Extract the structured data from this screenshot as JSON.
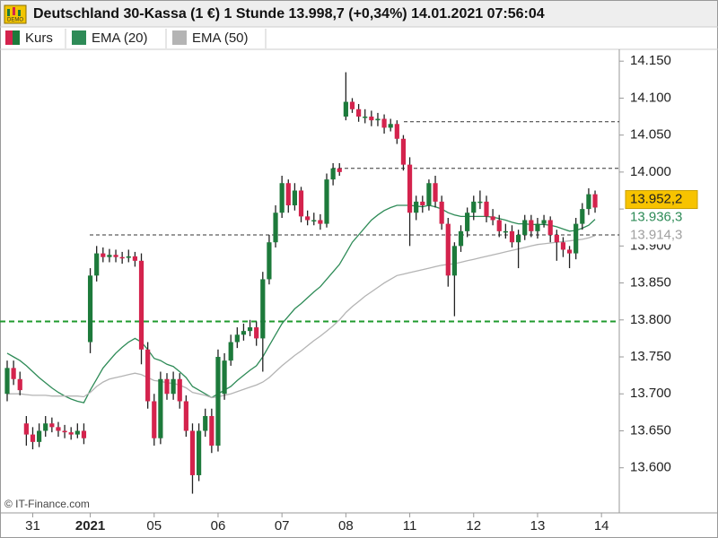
{
  "chart_data": {
    "type": "candlestick",
    "title": "Deutschland 30-Kassa (1 €) 1 Stunde 13.998,7 (+0,34%) 14.01.2021 07:56:04",
    "name": "Kurs",
    "up_color": "#1d7a3b",
    "down_color": "#d4234d",
    "source": "© IT-Finance.com",
    "categories": [
      null,
      null,
      null,
      null,
      "31",
      null,
      null,
      null,
      null,
      null,
      null,
      null,
      null,
      "2021",
      null,
      null,
      null,
      null,
      null,
      null,
      null,
      null,
      null,
      "05",
      null,
      null,
      null,
      null,
      null,
      null,
      null,
      null,
      null,
      "06",
      null,
      null,
      null,
      null,
      null,
      null,
      null,
      null,
      null,
      "07",
      null,
      null,
      null,
      null,
      null,
      null,
      null,
      null,
      null,
      "08",
      null,
      null,
      null,
      null,
      null,
      null,
      null,
      null,
      null,
      "11",
      null,
      null,
      null,
      null,
      null,
      null,
      null,
      null,
      null,
      "12",
      null,
      null,
      null,
      null,
      null,
      null,
      null,
      null,
      null,
      "13",
      null,
      null,
      null,
      null,
      null,
      null,
      null,
      null,
      null,
      "14"
    ],
    "open": [
      13700,
      13735,
      13720,
      13660,
      13645,
      13635,
      13650,
      13660,
      13655,
      13650,
      13648,
      13645,
      13650,
      13770,
      13860,
      13890,
      13885,
      13888,
      13885,
      13884,
      13886,
      13880,
      13760,
      13690,
      13640,
      13720,
      13700,
      13720,
      13690,
      13650,
      13590,
      13650,
      13670,
      13630,
      13700,
      13745,
      13770,
      13780,
      13785,
      13790,
      13775,
      13855,
      13905,
      13945,
      13985,
      13955,
      13975,
      13940,
      13935,
      13935,
      13930,
      13990,
      14005,
      14075,
      14095,
      14085,
      14075,
      14075,
      14070,
      14072,
      14060,
      14065,
      14045,
      14010,
      13945,
      13960,
      13955,
      13985,
      13960,
      13930,
      13860,
      13900,
      13920,
      13945,
      13960,
      13960,
      13940,
      13935,
      13920,
      13920,
      13905,
      13915,
      13935,
      13920,
      13930,
      13935,
      13915,
      13905,
      13895,
      13890,
      13930,
      13950,
      13970,
      null
    ],
    "high": [
      13745,
      13745,
      13730,
      13670,
      13655,
      13660,
      13670,
      13668,
      13662,
      13658,
      13655,
      13660,
      13660,
      13870,
      13900,
      13898,
      13896,
      13895,
      13892,
      13895,
      13892,
      13890,
      13770,
      13700,
      13730,
      13728,
      13730,
      13728,
      13698,
      13660,
      13660,
      13680,
      13680,
      13760,
      13755,
      13780,
      13790,
      13795,
      13800,
      13798,
      13865,
      13915,
      13955,
      13995,
      13990,
      13985,
      13980,
      13948,
      13945,
      13943,
      13998,
      14012,
      14012,
      14135,
      14100,
      14092,
      14085,
      14083,
      14080,
      14078,
      14072,
      14070,
      14050,
      14020,
      13968,
      13968,
      13990,
      13995,
      13968,
      13938,
      13905,
      13928,
      13952,
      13968,
      13975,
      13968,
      13950,
      13942,
      13930,
      13928,
      13922,
      13942,
      13942,
      13938,
      13942,
      13940,
      13922,
      13912,
      13900,
      13938,
      13958,
      13978,
      13975,
      null
    ],
    "low": [
      13690,
      13712,
      13698,
      13630,
      13625,
      13628,
      13642,
      13648,
      13642,
      13640,
      13638,
      13640,
      13632,
      13755,
      13852,
      13878,
      13878,
      13878,
      13876,
      13878,
      13872,
      13740,
      13680,
      13630,
      13632,
      13692,
      13692,
      13680,
      13642,
      13565,
      13582,
      13642,
      13620,
      13622,
      13692,
      13738,
      13762,
      13772,
      13778,
      13765,
      13730,
      13848,
      13898,
      13938,
      13945,
      13948,
      13932,
      13928,
      13928,
      13922,
      13925,
      13982,
      13995,
      14070,
      14080,
      14068,
      14066,
      14062,
      14062,
      14052,
      14055,
      14038,
      14002,
      13900,
      13935,
      13945,
      13948,
      13952,
      13922,
      13845,
      13805,
      13892,
      13912,
      13935,
      13950,
      13932,
      13928,
      13912,
      13910,
      13898,
      13870,
      13908,
      13912,
      13910,
      13925,
      13905,
      13880,
      13885,
      13870,
      13882,
      13922,
      13942,
      13945,
      null
    ],
    "close": [
      13735,
      13720,
      13705,
      13645,
      13635,
      13650,
      13660,
      13655,
      13650,
      13648,
      13645,
      13650,
      13640,
      13860,
      13890,
      13885,
      13888,
      13885,
      13884,
      13886,
      13880,
      13760,
      13690,
      13640,
      13720,
      13700,
      13720,
      13690,
      13650,
      13590,
      13650,
      13670,
      13630,
      13750,
      13745,
      13770,
      13780,
      13785,
      13790,
      13775,
      13855,
      13905,
      13945,
      13985,
      13955,
      13975,
      13940,
      13935,
      13935,
      13930,
      13990,
      14005,
      14000,
      14095,
      14085,
      14075,
      14075,
      14070,
      14072,
      14060,
      14065,
      14045,
      14010,
      13945,
      13960,
      13955,
      13985,
      13960,
      13930,
      13860,
      13900,
      13920,
      13945,
      13960,
      13960,
      13940,
      13935,
      13920,
      13920,
      13905,
      13915,
      13935,
      13920,
      13930,
      13935,
      13915,
      13905,
      13895,
      13890,
      13930,
      13950,
      13970,
      13952,
      null
    ],
    "series": [
      {
        "name": "EMA (20)",
        "color": "#2e8b57",
        "values": [
          13755,
          13750,
          13745,
          13738,
          13730,
          13722,
          13715,
          13708,
          13702,
          13697,
          13693,
          13690,
          13688,
          13705,
          13720,
          13735,
          13745,
          13755,
          13763,
          13770,
          13775,
          13770,
          13760,
          13748,
          13745,
          13740,
          13737,
          13730,
          13722,
          13710,
          13705,
          13700,
          13695,
          13700,
          13705,
          13710,
          13718,
          13725,
          13732,
          13738,
          13750,
          13765,
          13780,
          13795,
          13805,
          13815,
          13822,
          13830,
          13838,
          13845,
          13855,
          13865,
          13875,
          13890,
          13905,
          13915,
          13925,
          13935,
          13942,
          13948,
          13952,
          13955,
          13955,
          13955,
          13954,
          13953,
          13955,
          13953,
          13950,
          13945,
          13942,
          13940,
          13940,
          13940,
          13940,
          13940,
          13939,
          13937,
          13935,
          13932,
          13930,
          13930,
          13929,
          13929,
          13929,
          13928,
          13926,
          13923,
          13920,
          13921,
          13924,
          13928,
          13936,
          null
        ]
      },
      {
        "name": "EMA (50)",
        "color": "#b4b4b4",
        "values": [
          13700,
          13700,
          13700,
          13699,
          13698,
          13698,
          13698,
          13697,
          13697,
          13697,
          13697,
          13697,
          13696,
          13702,
          13710,
          13716,
          13720,
          13722,
          13724,
          13726,
          13728,
          13726,
          13722,
          13718,
          13717,
          13715,
          13714,
          13712,
          13708,
          13702,
          13700,
          13698,
          13695,
          13696,
          13698,
          13700,
          13703,
          13706,
          13709,
          13712,
          13716,
          13722,
          13730,
          13738,
          13745,
          13752,
          13758,
          13765,
          13772,
          13778,
          13785,
          13792,
          13800,
          13810,
          13818,
          13825,
          13832,
          13838,
          13844,
          13850,
          13855,
          13860,
          13862,
          13864,
          13866,
          13868,
          13870,
          13872,
          13874,
          13875,
          13876,
          13878,
          13880,
          13882,
          13884,
          13886,
          13888,
          13890,
          13892,
          13894,
          13896,
          13898,
          13900,
          13902,
          13903,
          13904,
          13905,
          13906,
          13907,
          13908,
          13909,
          13911,
          13914,
          null
        ]
      }
    ],
    "hlines": [
      {
        "value": 14068,
        "color": "#333333"
      },
      {
        "value": 14005,
        "color": "#333333"
      },
      {
        "value": 13915,
        "color": "#333333"
      },
      {
        "value": 13798,
        "color": "#1f9a2e"
      }
    ],
    "price_labels": [
      {
        "value": 13952.2,
        "label": "13.952,2",
        "fill": "#f7c300",
        "text_color": "#222222"
      },
      {
        "value": 13936.3,
        "label": "13.936,3",
        "fill": "#ffffff",
        "text_color": "#2e8b57"
      },
      {
        "value": 13914.3,
        "label": "13.914,3",
        "fill": "#ffffff",
        "text_color": "#a0a0a0"
      }
    ],
    "ylim": [
      13539,
      14166
    ],
    "yticks": [
      {
        "value": 13600,
        "label": "13.600"
      },
      {
        "value": 13650,
        "label": "13.650"
      },
      {
        "value": 13700,
        "label": "13.700"
      },
      {
        "value": 13750,
        "label": "13.750"
      },
      {
        "value": 13800,
        "label": "13.800"
      },
      {
        "value": 13850,
        "label": "13.850"
      },
      {
        "value": 13900,
        "label": "13.900"
      },
      {
        "value": 13950,
        "label": "13.950"
      },
      {
        "value": 14000,
        "label": "14.000"
      },
      {
        "value": 14050,
        "label": "14.050"
      },
      {
        "value": 14100,
        "label": "14.100"
      },
      {
        "value": 14150,
        "label": "14.150"
      }
    ]
  }
}
